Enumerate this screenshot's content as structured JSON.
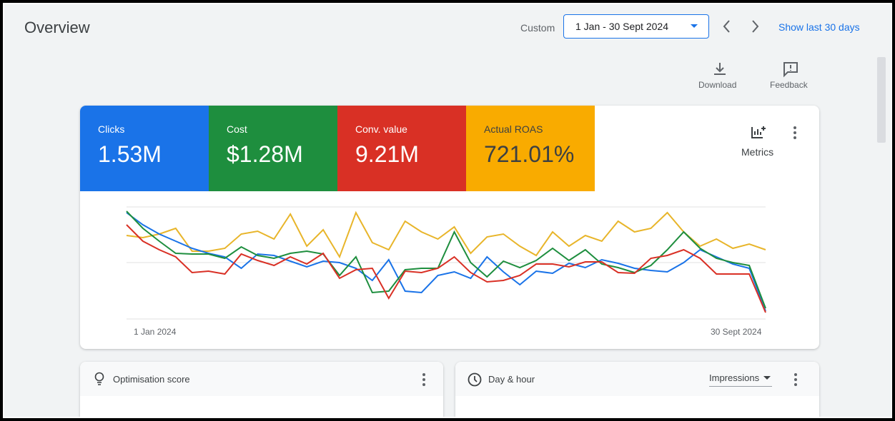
{
  "header": {
    "title": "Overview",
    "date_label": "Custom",
    "date_range": "1 Jan - 30 Sept 2024",
    "show_last": "Show last 30 days"
  },
  "toolbar": {
    "download": "Download",
    "feedback": "Feedback"
  },
  "metrics": [
    {
      "label": "Clicks",
      "value": "1.53M",
      "color": "#1a73e8",
      "line_color": "#1a73e8",
      "values": [
        149,
        132,
        119,
        109,
        99,
        92,
        87,
        71,
        91,
        89,
        81,
        73,
        81,
        79,
        71,
        54,
        83,
        39,
        37,
        61,
        66,
        57,
        87,
        66,
        48,
        67,
        64,
        78,
        72,
        83,
        78,
        71,
        68,
        66,
        79,
        97,
        87,
        77,
        71,
        11
      ]
    },
    {
      "label": "Cost",
      "value": "$1.28M",
      "color": "#1e8e3e",
      "line_color": "#1e8e3e",
      "values": [
        151,
        127,
        109,
        92,
        91,
        91,
        85,
        101,
        89,
        85,
        92,
        95,
        91,
        61,
        87,
        37,
        39,
        69,
        71,
        71,
        122,
        79,
        59,
        81,
        72,
        82,
        99,
        82,
        97,
        77,
        72,
        65,
        75,
        97,
        122,
        99,
        85,
        79,
        75,
        15
      ]
    },
    {
      "label": "Conv. value",
      "value": "9.21M",
      "color": "#d93025",
      "line_color": "#d93025",
      "values": [
        132,
        109,
        97,
        87,
        65,
        67,
        63,
        91,
        82,
        75,
        87,
        77,
        92,
        57,
        69,
        71,
        29,
        67,
        65,
        71,
        87,
        65,
        52,
        54,
        61,
        77,
        77,
        73,
        80,
        80,
        65,
        64,
        85,
        89,
        97,
        85,
        63,
        63,
        63,
        9
      ]
    },
    {
      "label": "Actual ROAS",
      "value": "721.01%",
      "color": "#f9ab00",
      "line_color": "#e8b52a",
      "values": [
        117,
        114,
        119,
        127,
        95,
        95,
        99,
        119,
        123,
        112,
        147,
        102,
        125,
        87,
        149,
        107,
        97,
        137,
        122,
        112,
        129,
        92,
        115,
        119,
        102,
        89,
        122,
        102,
        117,
        109,
        137,
        122,
        127,
        149,
        122,
        102,
        112,
        99,
        105,
        97
      ]
    }
  ],
  "metrics_button": "Metrics",
  "chart": {
    "x_start": "1 Jan 2024",
    "x_end": "30 Sept 2024"
  },
  "cards": [
    {
      "title": "Optimisation score"
    },
    {
      "title": "Day & hour",
      "dropdown": "Impressions"
    }
  ]
}
